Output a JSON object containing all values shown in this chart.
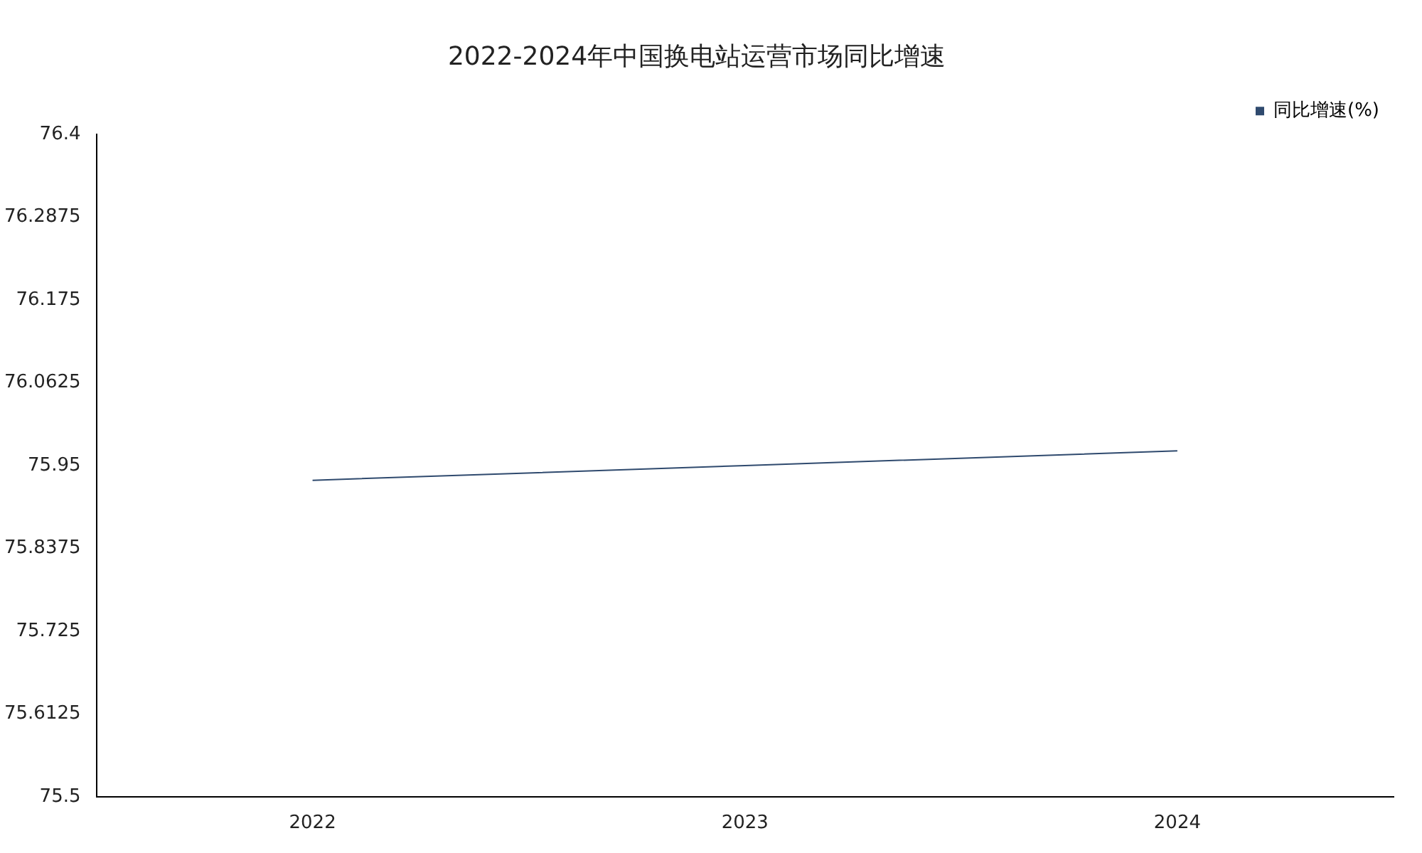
{
  "chart_data": {
    "type": "line",
    "title": "2022-2024年中国换电站运营市场同比增速",
    "categories": [
      "2022",
      "2023",
      "2024"
    ],
    "series": [
      {
        "name": "同比增速(%)",
        "color": "#2f4a6e",
        "values": [
          75.93,
          75.95,
          75.97
        ]
      }
    ],
    "ylim": [
      75.5,
      76.4
    ],
    "yticks": [
      75.5,
      75.6125,
      75.725,
      75.8375,
      75.95,
      76.0625,
      76.175,
      76.2875,
      76.4
    ],
    "legend": "top right",
    "marker": "none"
  }
}
